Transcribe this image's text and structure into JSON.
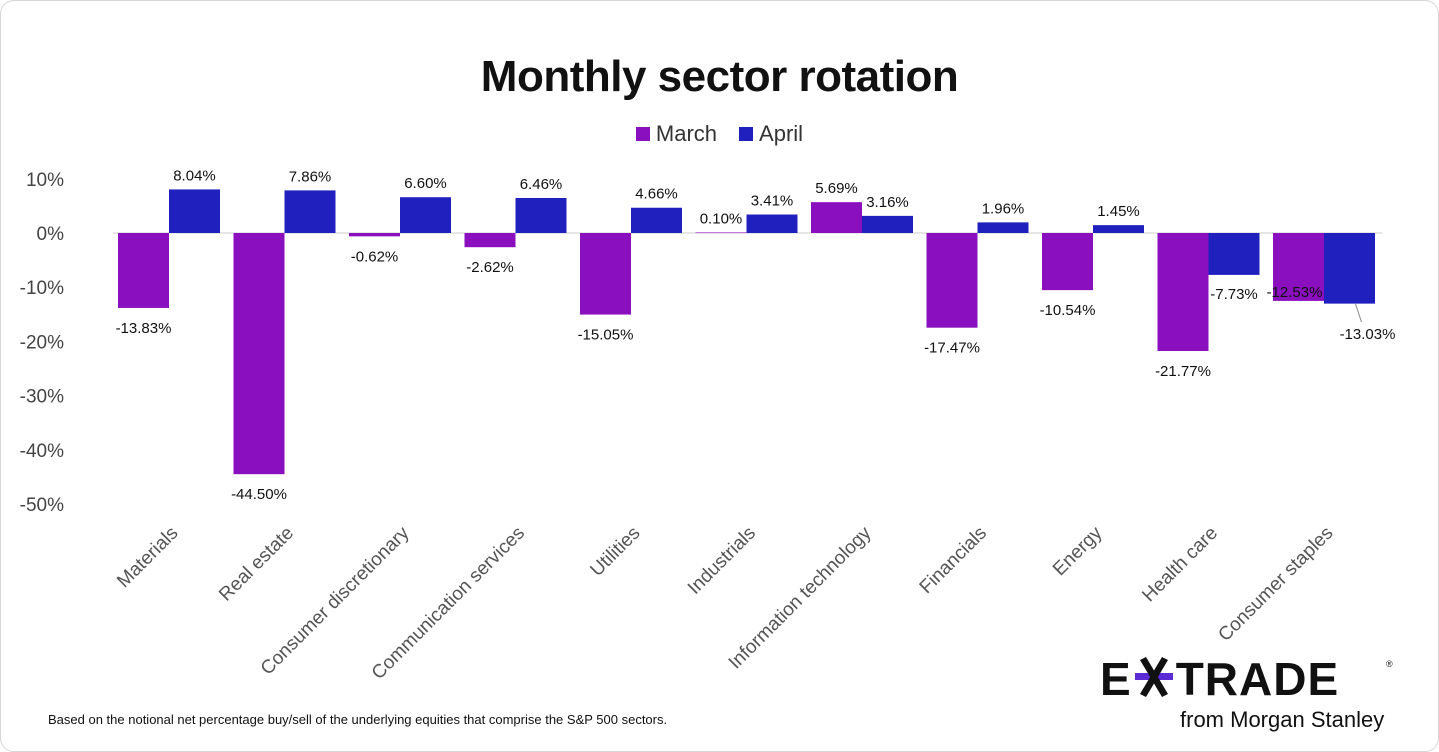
{
  "chart_data": {
    "type": "bar",
    "title": "Monthly sector rotation",
    "categories": [
      "Materials",
      "Real estate",
      "Consumer discretionary",
      "Communication services",
      "Utilities",
      "Industrials",
      "Information technology",
      "Financials",
      "Energy",
      "Health care",
      "Consumer staples"
    ],
    "series": [
      {
        "name": "March",
        "color": "#8a0fbf",
        "values": [
          -13.83,
          -44.5,
          -0.62,
          -2.62,
          -15.05,
          0.1,
          5.69,
          -17.47,
          -10.54,
          -21.77,
          -12.53
        ],
        "labels": [
          "-13.83%",
          "-44.50%",
          "-0.62%",
          "-2.62%",
          "-15.05%",
          "0.10%",
          "5.69%",
          "-17.47%",
          "-10.54%",
          "-21.77%",
          "-12.53%"
        ]
      },
      {
        "name": "April",
        "color": "#2020bf",
        "values": [
          8.04,
          7.86,
          6.6,
          6.46,
          4.66,
          3.41,
          3.16,
          1.96,
          1.45,
          -7.73,
          -13.03
        ],
        "labels": [
          "8.04%",
          "7.86%",
          "6.60%",
          "6.46%",
          "4.66%",
          "3.41%",
          "3.16%",
          "1.96%",
          "1.45%",
          "-7.73%",
          "-13.03%"
        ]
      }
    ],
    "yticks": [
      "10%",
      "0%",
      "-10%",
      "-20%",
      "-30%",
      "-40%",
      "-50%"
    ],
    "ytick_values": [
      10,
      0,
      -10,
      -20,
      -30,
      -40,
      -50
    ],
    "ylim": [
      -50,
      10
    ],
    "legend": "top-center",
    "grid": false
  },
  "footnote": "Based on the notional net percentage buy/sell of the underlying equities that comprise the S&P 500 sectors.",
  "logo": {
    "wordmark": "E*TRADE",
    "tagline": "from Morgan Stanley",
    "accent": "#5b2bd6"
  }
}
